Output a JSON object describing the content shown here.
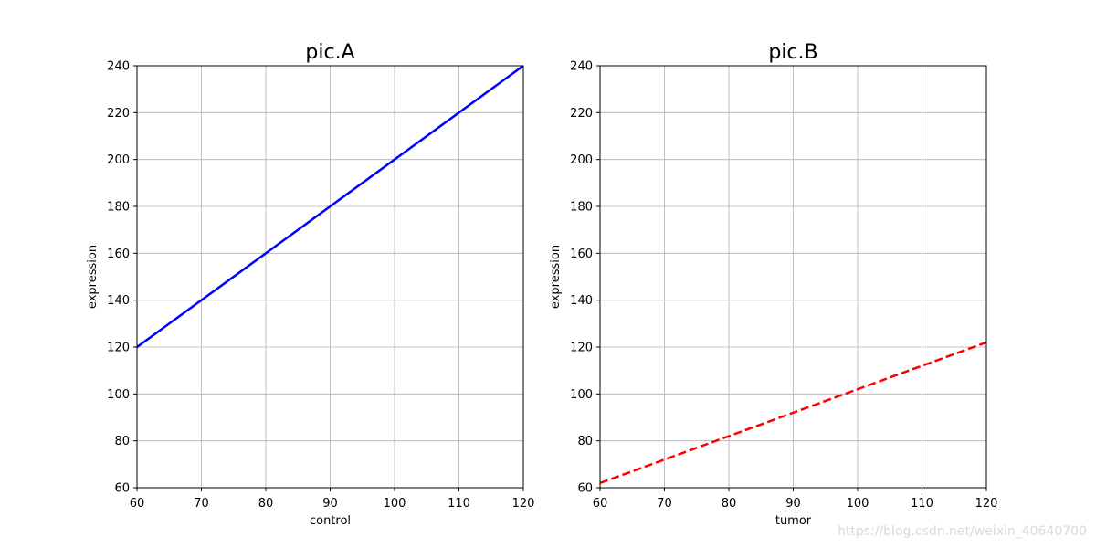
{
  "chart_data": [
    {
      "type": "line",
      "title": "pic.A",
      "xlabel": "control",
      "ylabel": "expression",
      "xlim": [
        60,
        120
      ],
      "ylim": [
        60,
        240
      ],
      "xticks": [
        60,
        70,
        80,
        90,
        100,
        110,
        120
      ],
      "yticks": [
        60,
        80,
        100,
        120,
        140,
        160,
        180,
        200,
        220,
        240
      ],
      "grid": true,
      "series": [
        {
          "x": [
            60,
            120
          ],
          "y": [
            120,
            240
          ],
          "color": "#0000ff",
          "linestyle": "solid"
        }
      ]
    },
    {
      "type": "line",
      "title": "pic.B",
      "xlabel": "tumor",
      "ylabel": "expression",
      "xlim": [
        60,
        120
      ],
      "ylim": [
        60,
        240
      ],
      "xticks": [
        60,
        70,
        80,
        90,
        100,
        110,
        120
      ],
      "yticks": [
        60,
        80,
        100,
        120,
        140,
        160,
        180,
        200,
        220,
        240
      ],
      "grid": true,
      "series": [
        {
          "x": [
            60,
            120
          ],
          "y": [
            62,
            122
          ],
          "color": "#ff0000",
          "linestyle": "dashed"
        }
      ]
    }
  ],
  "watermark": "https://blog.csdn.net/weixin_40640700"
}
